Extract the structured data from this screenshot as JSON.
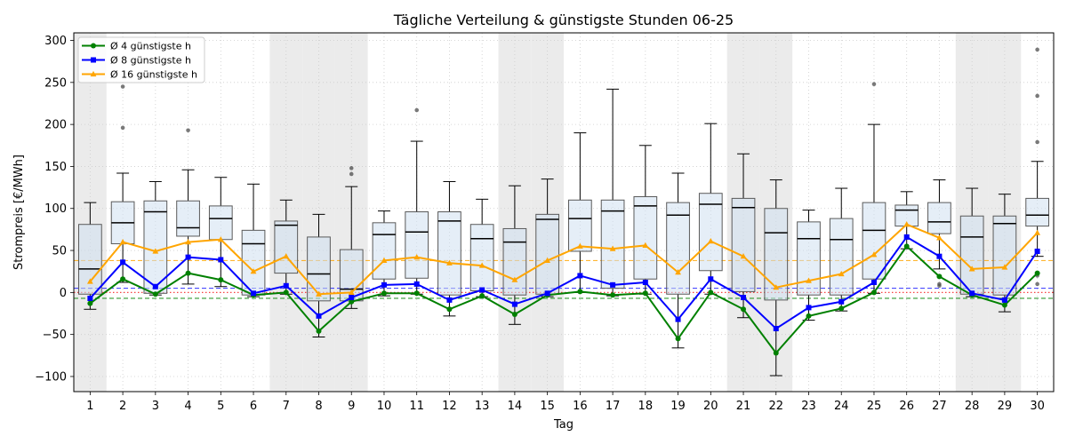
{
  "chart_data": {
    "type": "boxplot",
    "title": "Tägliche Verteilung & günstigste Stunden 06-25",
    "xlabel": "Tag",
    "ylabel": "Strompreis [€/MWh]",
    "x": [
      1,
      2,
      3,
      4,
      5,
      6,
      7,
      8,
      9,
      10,
      11,
      12,
      13,
      14,
      15,
      16,
      17,
      18,
      19,
      20,
      21,
      22,
      23,
      24,
      25,
      26,
      27,
      28,
      29,
      30
    ],
    "xlim": [
      0.5,
      30.5
    ],
    "ylim": [
      -118,
      309
    ],
    "y_ticks": [
      -100,
      -50,
      0,
      50,
      100,
      150,
      200,
      250,
      300
    ],
    "y_tick_labels": [
      "−100",
      "−50",
      "0",
      "50",
      "100",
      "150",
      "200",
      "250",
      "300"
    ],
    "grid": true,
    "legend": "top-left",
    "shaded_days": [
      1,
      7,
      8,
      9,
      14,
      15,
      21,
      22,
      28,
      29
    ],
    "boxes": [
      {
        "day": 1,
        "whislo": -20,
        "q1": -2,
        "median": 28,
        "q3": 81,
        "whishi": 107,
        "fliers": []
      },
      {
        "day": 2,
        "whislo": 12,
        "q1": 58,
        "median": 83,
        "q3": 108,
        "whishi": 142,
        "fliers": [
          245,
          196
        ]
      },
      {
        "day": 3,
        "whislo": -3,
        "q1": -1,
        "median": 96,
        "q3": 109,
        "whishi": 132,
        "fliers": []
      },
      {
        "day": 4,
        "whislo": 10,
        "q1": 67,
        "median": 77,
        "q3": 109,
        "whishi": 146,
        "fliers": [
          193
        ]
      },
      {
        "day": 5,
        "whislo": 7,
        "q1": 63,
        "median": 88,
        "q3": 103,
        "whishi": 137,
        "fliers": []
      },
      {
        "day": 6,
        "whislo": -5,
        "q1": -3,
        "median": 58,
        "q3": 74,
        "whishi": 129,
        "fliers": []
      },
      {
        "day": 7,
        "whislo": -2,
        "q1": 23,
        "median": 80,
        "q3": 85,
        "whishi": 110,
        "fliers": []
      },
      {
        "day": 8,
        "whislo": -53,
        "q1": -10,
        "median": 22,
        "q3": 66,
        "whishi": 93,
        "fliers": []
      },
      {
        "day": 9,
        "whislo": -19,
        "q1": -10,
        "median": 4,
        "q3": 51,
        "whishi": 126,
        "fliers": [
          148,
          141
        ]
      },
      {
        "day": 10,
        "whislo": -4,
        "q1": 16,
        "median": 69,
        "q3": 83,
        "whishi": 97,
        "fliers": []
      },
      {
        "day": 11,
        "whislo": -2,
        "q1": 17,
        "median": 72,
        "q3": 96,
        "whishi": 180,
        "fliers": [
          217
        ]
      },
      {
        "day": 12,
        "whislo": -28,
        "q1": -3,
        "median": 85,
        "q3": 96,
        "whishi": 132,
        "fliers": []
      },
      {
        "day": 13,
        "whislo": -5,
        "q1": 2,
        "median": 64,
        "q3": 81,
        "whishi": 111,
        "fliers": []
      },
      {
        "day": 14,
        "whislo": -38,
        "q1": -3,
        "median": 60,
        "q3": 76,
        "whishi": 127,
        "fliers": []
      },
      {
        "day": 15,
        "whislo": -5,
        "q1": -2,
        "median": 87,
        "q3": 93,
        "whishi": 135,
        "fliers": []
      },
      {
        "day": 16,
        "whislo": 0,
        "q1": 49,
        "median": 88,
        "q3": 110,
        "whishi": 190,
        "fliers": []
      },
      {
        "day": 17,
        "whislo": -4,
        "q1": 5,
        "median": 97,
        "q3": 110,
        "whishi": 242,
        "fliers": []
      },
      {
        "day": 18,
        "whislo": -2,
        "q1": 16,
        "median": 103,
        "q3": 114,
        "whishi": 175,
        "fliers": []
      },
      {
        "day": 19,
        "whislo": -66,
        "q1": -2,
        "median": 92,
        "q3": 107,
        "whishi": 142,
        "fliers": []
      },
      {
        "day": 20,
        "whislo": -2,
        "q1": 26,
        "median": 105,
        "q3": 118,
        "whishi": 201,
        "fliers": []
      },
      {
        "day": 21,
        "whislo": -30,
        "q1": 1,
        "median": 101,
        "q3": 112,
        "whishi": 165,
        "fliers": []
      },
      {
        "day": 22,
        "whislo": -99,
        "q1": -9,
        "median": 71,
        "q3": 100,
        "whishi": 134,
        "fliers": []
      },
      {
        "day": 23,
        "whislo": -33,
        "q1": -3,
        "median": 64,
        "q3": 84,
        "whishi": 98,
        "fliers": []
      },
      {
        "day": 24,
        "whislo": -22,
        "q1": -3,
        "median": 63,
        "q3": 88,
        "whishi": 124,
        "fliers": []
      },
      {
        "day": 25,
        "whislo": -1,
        "q1": 16,
        "median": 74,
        "q3": 107,
        "whishi": 200,
        "fliers": [
          248
        ]
      },
      {
        "day": 26,
        "whislo": 52,
        "q1": 79,
        "median": 98,
        "q3": 104,
        "whishi": 120,
        "fliers": []
      },
      {
        "day": 27,
        "whislo": 28,
        "q1": 70,
        "median": 84,
        "q3": 107,
        "whishi": 134,
        "fliers": [
          10,
          8
        ]
      },
      {
        "day": 28,
        "whislo": -5,
        "q1": -2,
        "median": 66,
        "q3": 91,
        "whishi": 124,
        "fliers": []
      },
      {
        "day": 29,
        "whislo": -23,
        "q1": -3,
        "median": 82,
        "q3": 91,
        "whishi": 117,
        "fliers": []
      },
      {
        "day": 30,
        "whislo": 43,
        "q1": 79,
        "median": 92,
        "q3": 112,
        "whishi": 156,
        "fliers": [
          289,
          234,
          179,
          20,
          10
        ]
      }
    ],
    "series": [
      {
        "name": "Ø 4 günstigste h",
        "color": "#008000",
        "marker": "circle",
        "values": [
          -13,
          16,
          -2,
          23,
          15,
          -3,
          0,
          -46,
          -11,
          -1,
          -1,
          -20,
          -4,
          -26,
          -3,
          1,
          -3,
          -1,
          -55,
          0,
          -20,
          -72,
          -28,
          -19,
          0,
          55,
          19,
          -3,
          -15,
          23
        ]
      },
      {
        "name": "Ø 8 günstigste h",
        "color": "#0000ff",
        "marker": "square",
        "values": [
          -7,
          36,
          7,
          42,
          39,
          -1,
          8,
          -28,
          -6,
          9,
          10,
          -9,
          3,
          -14,
          -1,
          20,
          9,
          12,
          -32,
          16,
          -6,
          -43,
          -18,
          -11,
          12,
          66,
          43,
          -1,
          -9,
          49
        ]
      },
      {
        "name": "Ø 16 günstigste h",
        "color": "#ffa500",
        "marker": "triangle",
        "values": [
          13,
          60,
          49,
          60,
          63,
          25,
          43,
          -2,
          0,
          38,
          42,
          35,
          32,
          15,
          38,
          55,
          52,
          56,
          24,
          61,
          43,
          6,
          14,
          22,
          45,
          81,
          65,
          28,
          30,
          71
        ]
      }
    ],
    "reference_lines": [
      {
        "value": 38,
        "color": "#ffa500",
        "style": "dashed"
      },
      {
        "value": 5,
        "color": "#0000ff",
        "style": "dashed"
      },
      {
        "value": 0,
        "color": "#ff0000",
        "style": "dotted"
      },
      {
        "value": -7,
        "color": "#008000",
        "style": "dashed"
      }
    ],
    "colors": {
      "box_fill": "#cfe0f1",
      "box_edge": "#5a5a5a",
      "median": "#000000",
      "whisker": "#000000",
      "flier": "#4d4d4d",
      "shade": "#ebebeb",
      "grid": "#cccccc"
    }
  }
}
